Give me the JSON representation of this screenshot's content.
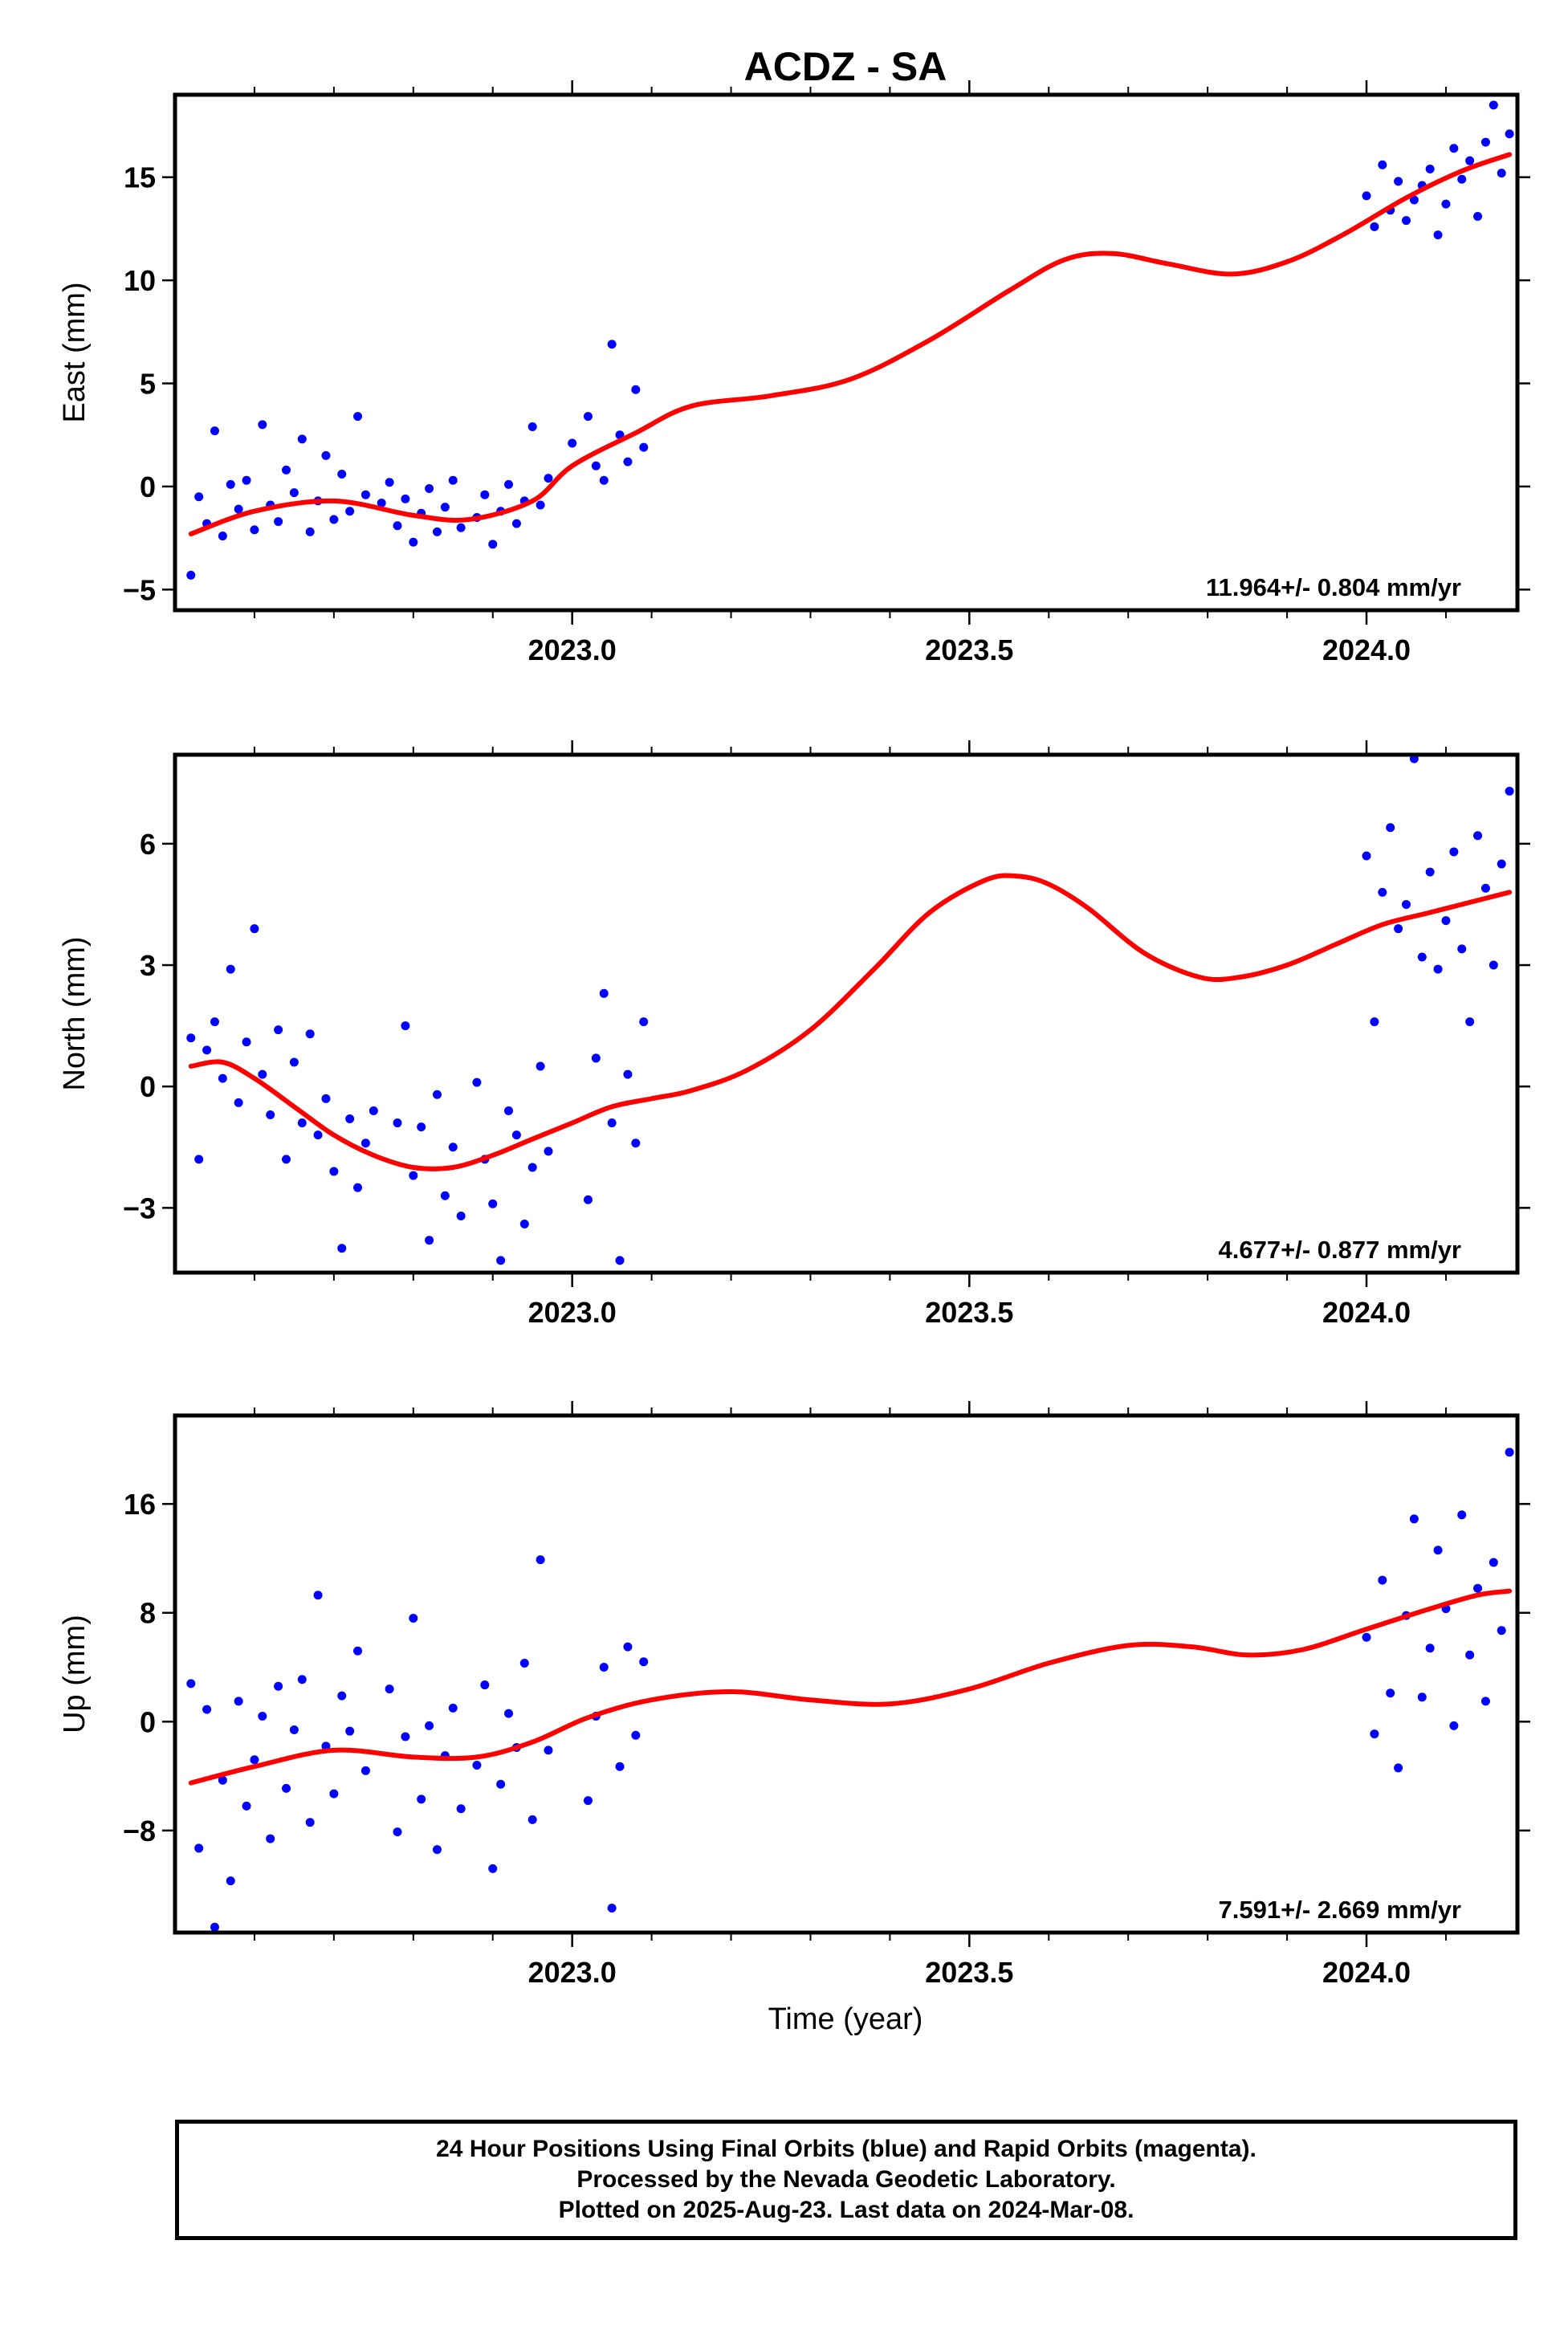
{
  "title": "ACDZ - SA",
  "xlabel": "Time (year)",
  "footer": {
    "line1": "24 Hour Positions Using Final Orbits (blue) and Rapid Orbits (magenta).",
    "line2": "Processed by the Nevada Geodetic Laboratory.",
    "line3": "Plotted on 2025-Aug-23. Last data on 2024-Mar-08."
  },
  "colors": {
    "final_orbits": "#0000ff",
    "fit": "#ff0000",
    "frame": "#000000"
  },
  "chart_data": [
    {
      "type": "scatter",
      "name": "east",
      "ylabel": "East (mm)",
      "rate": "11.964+/- 0.804 mm/yr",
      "xlim": [
        2022.5,
        2024.19
      ],
      "ylim": [
        -6,
        19
      ],
      "xticks": [
        2023.0,
        2023.5,
        2024.0
      ],
      "xtick_labels": [
        "2023.0",
        "2023.5",
        "2024.0"
      ],
      "yticks": [
        -5,
        0,
        5,
        10,
        15
      ],
      "ytick_labels": [
        "−5",
        "0",
        "5",
        "10",
        "15"
      ],
      "fit": {
        "x": [
          2022.52,
          2022.6,
          2022.7,
          2022.8,
          2022.87,
          2022.95,
          2023.0,
          2023.08,
          2023.15,
          2023.25,
          2023.35,
          2023.45,
          2023.55,
          2023.62,
          2023.68,
          2023.75,
          2023.83,
          2023.9,
          2023.97,
          2024.05,
          2024.12,
          2024.18
        ],
        "y": [
          -2.3,
          -1.2,
          -0.7,
          -1.4,
          -1.6,
          -0.7,
          1.0,
          2.6,
          3.9,
          4.4,
          5.2,
          7.1,
          9.5,
          11.0,
          11.3,
          10.8,
          10.3,
          10.9,
          12.2,
          14.0,
          15.3,
          16.1
        ]
      },
      "points": {
        "x": [
          2022.52,
          2022.53,
          2022.54,
          2022.55,
          2022.56,
          2022.57,
          2022.58,
          2022.59,
          2022.6,
          2022.61,
          2022.62,
          2022.63,
          2022.64,
          2022.65,
          2022.66,
          2022.67,
          2022.68,
          2022.69,
          2022.7,
          2022.71,
          2022.72,
          2022.73,
          2022.74,
          2022.76,
          2022.77,
          2022.78,
          2022.79,
          2022.8,
          2022.81,
          2022.82,
          2022.83,
          2022.84,
          2022.85,
          2022.86,
          2022.88,
          2022.89,
          2022.9,
          2022.91,
          2022.92,
          2022.93,
          2022.94,
          2022.95,
          2022.96,
          2022.97,
          2023.0,
          2023.02,
          2023.03,
          2023.04,
          2023.05,
          2023.06,
          2023.07,
          2023.08,
          2023.09,
          2024.0,
          2024.01,
          2024.02,
          2024.03,
          2024.04,
          2024.05,
          2024.06,
          2024.07,
          2024.08,
          2024.09,
          2024.1,
          2024.11,
          2024.12,
          2024.13,
          2024.14,
          2024.15,
          2024.16,
          2024.17,
          2024.18
        ],
        "y": [
          -4.3,
          -0.5,
          -1.8,
          2.7,
          -2.4,
          0.1,
          -1.1,
          0.3,
          -2.1,
          3.0,
          -0.9,
          -1.7,
          0.8,
          -0.3,
          2.3,
          -2.2,
          -0.7,
          1.5,
          -1.6,
          0.6,
          -1.2,
          3.4,
          -0.4,
          -0.8,
          0.2,
          -1.9,
          -0.6,
          -2.7,
          -1.3,
          -0.1,
          -2.2,
          -1.0,
          0.3,
          -2.0,
          -1.5,
          -0.4,
          -2.8,
          -1.2,
          0.1,
          -1.8,
          -0.7,
          2.9,
          -0.9,
          0.4,
          2.1,
          3.4,
          1.0,
          0.3,
          6.9,
          2.5,
          1.2,
          4.7,
          1.9,
          14.1,
          12.6,
          15.6,
          13.4,
          14.8,
          12.9,
          13.9,
          14.6,
          15.4,
          12.2,
          13.7,
          16.4,
          14.9,
          15.8,
          13.1,
          16.7,
          18.5,
          15.2,
          17.1
        ],
        "color": "#0000ff"
      }
    },
    {
      "type": "scatter",
      "name": "north",
      "ylabel": "North (mm)",
      "rate": "4.677+/- 0.877 mm/yr",
      "xlim": [
        2022.5,
        2024.19
      ],
      "ylim": [
        -4.6,
        8.2
      ],
      "xticks": [
        2023.0,
        2023.5,
        2024.0
      ],
      "xtick_labels": [
        "2023.0",
        "2023.5",
        "2024.0"
      ],
      "yticks": [
        -3,
        0,
        3,
        6
      ],
      "ytick_labels": [
        "−3",
        "0",
        "3",
        "6"
      ],
      "fit": {
        "x": [
          2022.52,
          2022.56,
          2022.6,
          2022.65,
          2022.7,
          2022.75,
          2022.8,
          2022.85,
          2022.9,
          2022.95,
          2023.0,
          2023.05,
          2023.1,
          2023.15,
          2023.22,
          2023.3,
          2023.38,
          2023.45,
          2023.52,
          2023.56,
          2023.6,
          2023.65,
          2023.72,
          2023.79,
          2023.84,
          2023.9,
          2023.96,
          2024.02,
          2024.08,
          2024.14,
          2024.18
        ],
        "y": [
          0.5,
          0.6,
          0.2,
          -0.5,
          -1.2,
          -1.7,
          -2.0,
          -2.0,
          -1.7,
          -1.3,
          -0.9,
          -0.5,
          -0.3,
          -0.1,
          0.4,
          1.4,
          2.9,
          4.3,
          5.1,
          5.2,
          5.0,
          4.4,
          3.3,
          2.7,
          2.7,
          3.0,
          3.5,
          4.0,
          4.3,
          4.6,
          4.8
        ]
      },
      "points": {
        "x": [
          2022.52,
          2022.53,
          2022.54,
          2022.55,
          2022.56,
          2022.57,
          2022.58,
          2022.59,
          2022.6,
          2022.61,
          2022.62,
          2022.63,
          2022.64,
          2022.65,
          2022.66,
          2022.67,
          2022.68,
          2022.69,
          2022.7,
          2022.71,
          2022.72,
          2022.73,
          2022.74,
          2022.75,
          2022.78,
          2022.79,
          2022.8,
          2022.81,
          2022.82,
          2022.83,
          2022.84,
          2022.85,
          2022.86,
          2022.88,
          2022.89,
          2022.9,
          2022.91,
          2022.92,
          2022.93,
          2022.94,
          2022.95,
          2022.96,
          2022.97,
          2023.02,
          2023.03,
          2023.04,
          2023.05,
          2023.06,
          2023.07,
          2023.08,
          2023.09,
          2024.0,
          2024.01,
          2024.02,
          2024.03,
          2024.04,
          2024.05,
          2024.06,
          2024.07,
          2024.08,
          2024.09,
          2024.1,
          2024.11,
          2024.12,
          2024.13,
          2024.14,
          2024.15,
          2024.16,
          2024.17,
          2024.18
        ],
        "y": [
          1.2,
          -1.8,
          0.9,
          1.6,
          0.2,
          2.9,
          -0.4,
          1.1,
          3.9,
          0.3,
          -0.7,
          1.4,
          -1.8,
          0.6,
          -0.9,
          1.3,
          -1.2,
          -0.3,
          -2.1,
          -4.0,
          -0.8,
          -2.5,
          -1.4,
          -0.6,
          -0.9,
          1.5,
          -2.2,
          -1.0,
          -3.8,
          -0.2,
          -2.7,
          -1.5,
          -3.2,
          0.1,
          -1.8,
          -2.9,
          -4.3,
          -0.6,
          -1.2,
          -3.4,
          -2.0,
          0.5,
          -1.6,
          -2.8,
          0.7,
          2.3,
          -0.9,
          -4.3,
          0.3,
          -1.4,
          1.6,
          5.7,
          1.6,
          4.8,
          6.4,
          3.9,
          4.5,
          8.1,
          3.2,
          5.3,
          2.9,
          4.1,
          5.8,
          3.4,
          1.6,
          6.2,
          4.9,
          3.0,
          5.5,
          7.3
        ],
        "color": "#0000ff"
      }
    },
    {
      "type": "scatter",
      "name": "up",
      "ylabel": "Up (mm)",
      "rate": "7.591+/- 2.669 mm/yr",
      "xlim": [
        2022.5,
        2024.19
      ],
      "ylim": [
        -15.5,
        22.5
      ],
      "xticks": [
        2023.0,
        2023.5,
        2024.0
      ],
      "xtick_labels": [
        "2023.0",
        "2023.5",
        "2024.0"
      ],
      "yticks": [
        -8,
        0,
        8,
        16
      ],
      "ytick_labels": [
        "−8",
        "0",
        "8",
        "16"
      ],
      "fit": {
        "x": [
          2022.52,
          2022.6,
          2022.7,
          2022.8,
          2022.88,
          2022.95,
          2023.02,
          2023.1,
          2023.2,
          2023.3,
          2023.4,
          2023.5,
          2023.6,
          2023.7,
          2023.78,
          2023.85,
          2023.92,
          2024.0,
          2024.08,
          2024.14,
          2024.18
        ],
        "y": [
          -4.5,
          -3.3,
          -2.1,
          -2.6,
          -2.6,
          -1.5,
          0.3,
          1.6,
          2.2,
          1.6,
          1.3,
          2.4,
          4.3,
          5.6,
          5.5,
          4.9,
          5.3,
          6.8,
          8.3,
          9.3,
          9.6
        ]
      },
      "points": {
        "x": [
          2022.52,
          2022.53,
          2022.54,
          2022.55,
          2022.56,
          2022.57,
          2022.58,
          2022.59,
          2022.6,
          2022.61,
          2022.62,
          2022.63,
          2022.64,
          2022.65,
          2022.66,
          2022.67,
          2022.68,
          2022.69,
          2022.7,
          2022.71,
          2022.72,
          2022.73,
          2022.74,
          2022.77,
          2022.78,
          2022.79,
          2022.8,
          2022.81,
          2022.82,
          2022.83,
          2022.84,
          2022.85,
          2022.86,
          2022.88,
          2022.89,
          2022.9,
          2022.91,
          2022.92,
          2022.93,
          2022.94,
          2022.95,
          2022.96,
          2022.97,
          2023.02,
          2023.03,
          2023.04,
          2023.05,
          2023.06,
          2023.07,
          2023.08,
          2023.09,
          2024.0,
          2024.01,
          2024.02,
          2024.03,
          2024.04,
          2024.05,
          2024.06,
          2024.07,
          2024.08,
          2024.09,
          2024.1,
          2024.11,
          2024.12,
          2024.13,
          2024.14,
          2024.15,
          2024.16,
          2024.17,
          2024.18
        ],
        "y": [
          2.8,
          -9.3,
          0.9,
          -15.1,
          -4.3,
          -11.7,
          1.5,
          -6.2,
          -2.8,
          0.4,
          -8.6,
          2.6,
          -4.9,
          -0.6,
          3.1,
          -7.4,
          9.3,
          -1.8,
          -5.3,
          1.9,
          -0.7,
          5.2,
          -3.6,
          2.4,
          -8.1,
          -1.1,
          7.6,
          -5.7,
          -0.3,
          -9.4,
          -2.5,
          1.0,
          -6.4,
          -3.2,
          2.7,
          -10.8,
          -4.6,
          0.6,
          -1.9,
          4.3,
          -7.2,
          11.9,
          -2.1,
          -5.8,
          0.4,
          4.0,
          -13.7,
          -3.3,
          5.5,
          -1.0,
          4.4,
          6.2,
          -0.9,
          10.4,
          2.1,
          -3.4,
          7.8,
          14.9,
          1.8,
          5.4,
          12.6,
          8.3,
          -0.3,
          15.2,
          4.9,
          9.8,
          1.5,
          11.7,
          6.7,
          19.8
        ],
        "color": "#0000ff"
      }
    }
  ]
}
